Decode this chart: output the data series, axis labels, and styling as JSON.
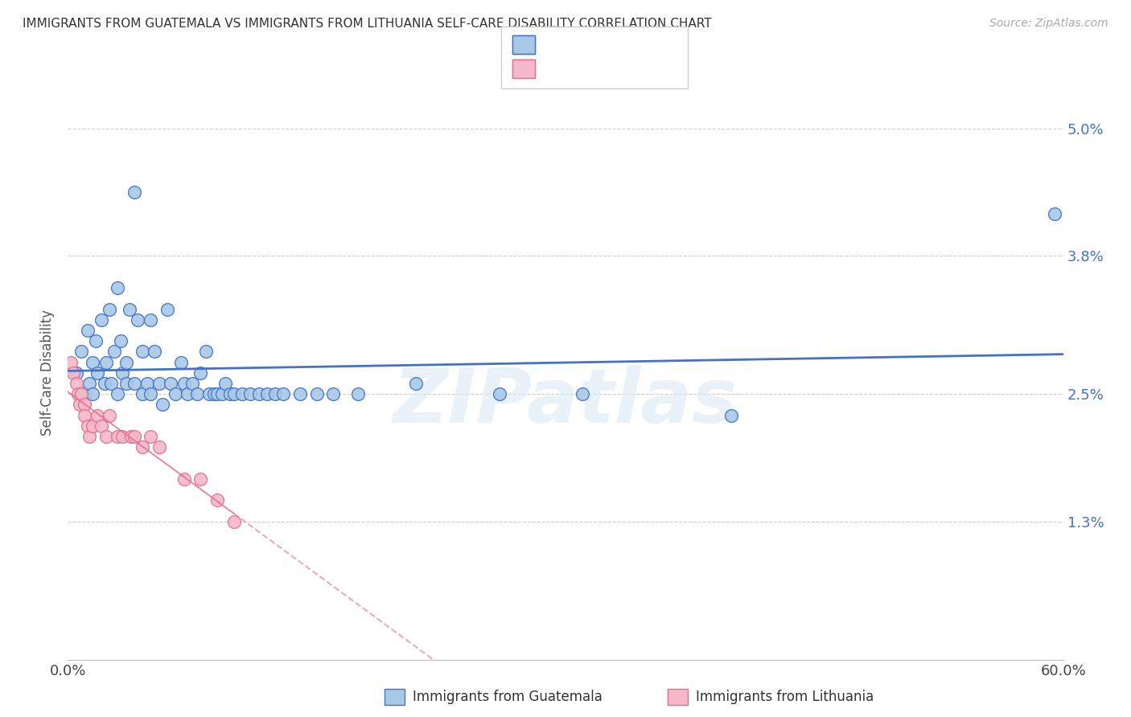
{
  "title": "IMMIGRANTS FROM GUATEMALA VS IMMIGRANTS FROM LITHUANIA SELF-CARE DISABILITY CORRELATION CHART",
  "source": "Source: ZipAtlas.com",
  "ylabel": "Self-Care Disability",
  "xlim": [
    0.0,
    0.6
  ],
  "ylim": [
    0.0,
    5.4
  ],
  "color_guatemala": "#a8c8e8",
  "color_lithuania": "#f4b8c8",
  "color_line_guatemala": "#4472c4",
  "color_line_lithuania": "#e07090",
  "watermark": "ZIPatlas",
  "guatemala_x": [
    0.005,
    0.008,
    0.01,
    0.012,
    0.013,
    0.015,
    0.015,
    0.017,
    0.018,
    0.02,
    0.022,
    0.023,
    0.025,
    0.026,
    0.028,
    0.03,
    0.03,
    0.032,
    0.033,
    0.035,
    0.035,
    0.037,
    0.04,
    0.04,
    0.042,
    0.045,
    0.045,
    0.048,
    0.05,
    0.05,
    0.052,
    0.055,
    0.057,
    0.06,
    0.062,
    0.065,
    0.068,
    0.07,
    0.072,
    0.075,
    0.078,
    0.08,
    0.083,
    0.085,
    0.088,
    0.09,
    0.093,
    0.095,
    0.098,
    0.1,
    0.105,
    0.11,
    0.115,
    0.12,
    0.125,
    0.13,
    0.14,
    0.15,
    0.16,
    0.175,
    0.21,
    0.26,
    0.31,
    0.595,
    0.4
  ],
  "guatemala_y": [
    2.7,
    2.9,
    2.5,
    3.1,
    2.6,
    2.8,
    2.5,
    3.0,
    2.7,
    3.2,
    2.6,
    2.8,
    3.3,
    2.6,
    2.9,
    3.5,
    2.5,
    3.0,
    2.7,
    2.6,
    2.8,
    3.3,
    4.4,
    2.6,
    3.2,
    2.9,
    2.5,
    2.6,
    3.2,
    2.5,
    2.9,
    2.6,
    2.4,
    3.3,
    2.6,
    2.5,
    2.8,
    2.6,
    2.5,
    2.6,
    2.5,
    2.7,
    2.9,
    2.5,
    2.5,
    2.5,
    2.5,
    2.6,
    2.5,
    2.5,
    2.5,
    2.5,
    2.5,
    2.5,
    2.5,
    2.5,
    2.5,
    2.5,
    2.5,
    2.5,
    2.6,
    2.5,
    2.5,
    4.2,
    2.3
  ],
  "lithuania_x": [
    0.002,
    0.003,
    0.005,
    0.006,
    0.007,
    0.008,
    0.01,
    0.01,
    0.012,
    0.013,
    0.015,
    0.018,
    0.02,
    0.023,
    0.025,
    0.03,
    0.033,
    0.038,
    0.04,
    0.045,
    0.05,
    0.055,
    0.07,
    0.08,
    0.09,
    0.1
  ],
  "lithuania_y": [
    2.8,
    2.7,
    2.6,
    2.5,
    2.4,
    2.5,
    2.4,
    2.3,
    2.2,
    2.1,
    2.2,
    2.3,
    2.2,
    2.1,
    2.3,
    2.1,
    2.1,
    2.1,
    2.1,
    2.0,
    2.1,
    2.0,
    1.7,
    1.7,
    1.5,
    1.3
  ]
}
